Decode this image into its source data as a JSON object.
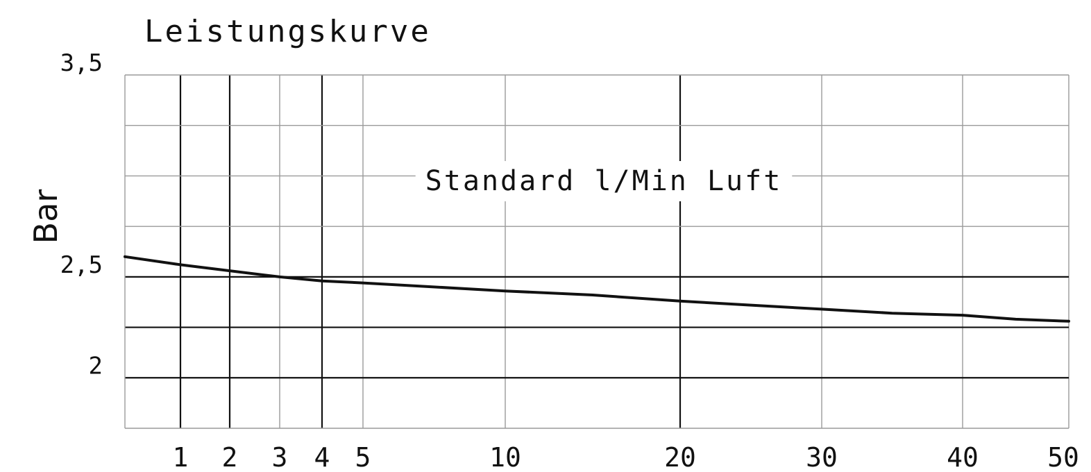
{
  "chart_data": {
    "type": "line",
    "title": "Leistungskurve",
    "xlabel": "",
    "ylabel": "Bar",
    "annotation": "Standard l/Min Luft",
    "x_ticks": [
      1,
      2,
      3,
      4,
      5,
      10,
      20,
      30,
      40,
      50
    ],
    "y_ticks": [
      {
        "value": 2,
        "label": "2"
      },
      {
        "value": 2.5,
        "label": "2,5"
      },
      {
        "value": 3.5,
        "label": "3,5"
      }
    ],
    "x_gridlines": [
      1,
      2,
      3,
      4,
      5,
      10,
      20,
      30,
      40,
      50
    ],
    "y_gridlines": [
      2,
      2.25,
      2.5,
      2.75,
      3,
      3.25,
      3.5
    ],
    "ylim": [
      1.75,
      3.5
    ],
    "xlim": [
      0,
      50
    ],
    "grid": true,
    "series": [
      {
        "x": [
          0,
          1,
          2,
          3,
          4,
          5,
          10,
          15,
          20,
          25,
          30,
          35,
          40,
          45,
          50
        ],
        "y": [
          2.6,
          2.56,
          2.53,
          2.5,
          2.48,
          2.47,
          2.43,
          2.41,
          2.38,
          2.36,
          2.34,
          2.32,
          2.31,
          2.29,
          2.28
        ]
      }
    ]
  }
}
